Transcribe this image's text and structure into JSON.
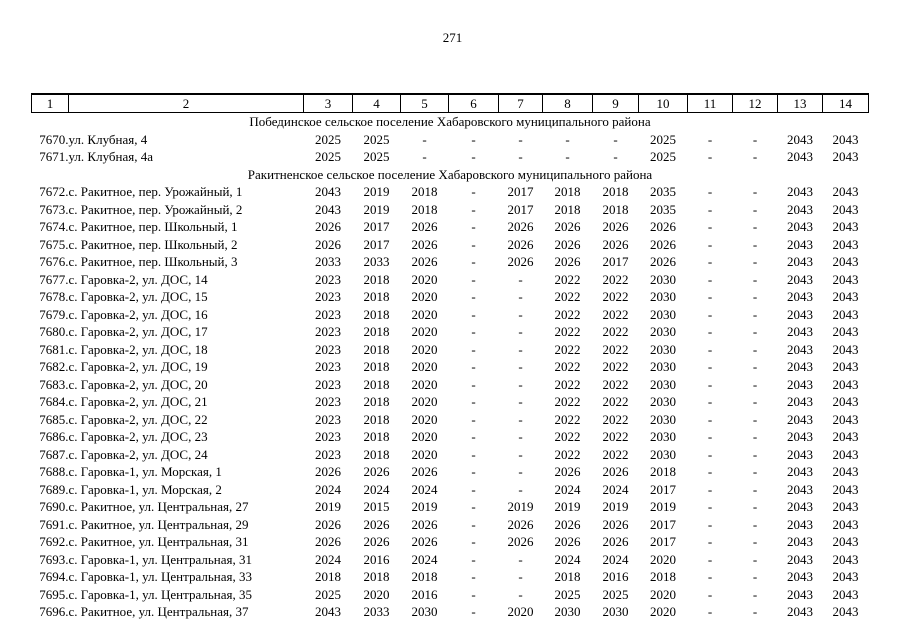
{
  "page": {
    "number": "271"
  },
  "table": {
    "column_numbers": [
      "1",
      "2",
      "3",
      "4",
      "5",
      "6",
      "7",
      "8",
      "9",
      "10",
      "11",
      "12",
      "13",
      "14"
    ],
    "rows": [
      {
        "type": "section",
        "text": "Побединское сельское поселение Хабаровского муниципального района"
      },
      {
        "type": "data",
        "num": "7670.",
        "address": "ул. Клубная, 4",
        "values": [
          "2025",
          "2025",
          "-",
          "-",
          "-",
          "-",
          "-",
          "2025",
          "-",
          "-",
          "2043",
          "2043"
        ]
      },
      {
        "type": "data",
        "num": "7671.",
        "address": "ул. Клубная, 4а",
        "values": [
          "2025",
          "2025",
          "-",
          "-",
          "-",
          "-",
          "-",
          "2025",
          "-",
          "-",
          "2043",
          "2043"
        ]
      },
      {
        "type": "section",
        "text": "Ракитненское сельское поселение Хабаровского муниципального района"
      },
      {
        "type": "data",
        "num": "7672.",
        "address": "с. Ракитное, пер. Урожайный, 1",
        "values": [
          "2043",
          "2019",
          "2018",
          "-",
          "2017",
          "2018",
          "2018",
          "2035",
          "-",
          "-",
          "2043",
          "2043"
        ]
      },
      {
        "type": "data",
        "num": "7673.",
        "address": "с. Ракитное, пер. Урожайный, 2",
        "values": [
          "2043",
          "2019",
          "2018",
          "-",
          "2017",
          "2018",
          "2018",
          "2035",
          "-",
          "-",
          "2043",
          "2043"
        ]
      },
      {
        "type": "data",
        "num": "7674.",
        "address": "с. Ракитное, пер. Школьный, 1",
        "values": [
          "2026",
          "2017",
          "2026",
          "-",
          "2026",
          "2026",
          "2026",
          "2026",
          "-",
          "-",
          "2043",
          "2043"
        ]
      },
      {
        "type": "data",
        "num": "7675.",
        "address": "с. Ракитное, пер. Школьный, 2",
        "values": [
          "2026",
          "2017",
          "2026",
          "-",
          "2026",
          "2026",
          "2026",
          "2026",
          "-",
          "-",
          "2043",
          "2043"
        ]
      },
      {
        "type": "data",
        "num": "7676.",
        "address": "с. Ракитное, пер. Школьный, 3",
        "values": [
          "2033",
          "2033",
          "2026",
          "-",
          "2026",
          "2026",
          "2017",
          "2026",
          "-",
          "-",
          "2043",
          "2043"
        ]
      },
      {
        "type": "data",
        "num": "7677.",
        "address": "с. Гаровка-2, ул. ДОС, 14",
        "values": [
          "2023",
          "2018",
          "2020",
          "-",
          "-",
          "2022",
          "2022",
          "2030",
          "-",
          "-",
          "2043",
          "2043"
        ]
      },
      {
        "type": "data",
        "num": "7678.",
        "address": "с. Гаровка-2, ул. ДОС, 15",
        "values": [
          "2023",
          "2018",
          "2020",
          "-",
          "-",
          "2022",
          "2022",
          "2030",
          "-",
          "-",
          "2043",
          "2043"
        ]
      },
      {
        "type": "data",
        "num": "7679.",
        "address": "с. Гаровка-2, ул. ДОС, 16",
        "values": [
          "2023",
          "2018",
          "2020",
          "-",
          "-",
          "2022",
          "2022",
          "2030",
          "-",
          "-",
          "2043",
          "2043"
        ]
      },
      {
        "type": "data",
        "num": "7680.",
        "address": "с. Гаровка-2, ул. ДОС, 17",
        "values": [
          "2023",
          "2018",
          "2020",
          "-",
          "-",
          "2022",
          "2022",
          "2030",
          "-",
          "-",
          "2043",
          "2043"
        ]
      },
      {
        "type": "data",
        "num": "7681.",
        "address": "с. Гаровка-2, ул. ДОС, 18",
        "values": [
          "2023",
          "2018",
          "2020",
          "-",
          "-",
          "2022",
          "2022",
          "2030",
          "-",
          "-",
          "2043",
          "2043"
        ]
      },
      {
        "type": "data",
        "num": "7682.",
        "address": "с. Гаровка-2, ул. ДОС, 19",
        "values": [
          "2023",
          "2018",
          "2020",
          "-",
          "-",
          "2022",
          "2022",
          "2030",
          "-",
          "-",
          "2043",
          "2043"
        ]
      },
      {
        "type": "data",
        "num": "7683.",
        "address": "с. Гаровка-2, ул. ДОС, 20",
        "values": [
          "2023",
          "2018",
          "2020",
          "-",
          "-",
          "2022",
          "2022",
          "2030",
          "-",
          "-",
          "2043",
          "2043"
        ]
      },
      {
        "type": "data",
        "num": "7684.",
        "address": "с. Гаровка-2, ул. ДОС, 21",
        "values": [
          "2023",
          "2018",
          "2020",
          "-",
          "-",
          "2022",
          "2022",
          "2030",
          "-",
          "-",
          "2043",
          "2043"
        ]
      },
      {
        "type": "data",
        "num": "7685.",
        "address": "с. Гаровка-2, ул. ДОС, 22",
        "values": [
          "2023",
          "2018",
          "2020",
          "-",
          "-",
          "2022",
          "2022",
          "2030",
          "-",
          "-",
          "2043",
          "2043"
        ]
      },
      {
        "type": "data",
        "num": "7686.",
        "address": "с. Гаровка-2, ул. ДОС, 23",
        "values": [
          "2023",
          "2018",
          "2020",
          "-",
          "-",
          "2022",
          "2022",
          "2030",
          "-",
          "-",
          "2043",
          "2043"
        ]
      },
      {
        "type": "data",
        "num": "7687.",
        "address": "с. Гаровка-2, ул. ДОС, 24",
        "values": [
          "2023",
          "2018",
          "2020",
          "-",
          "-",
          "2022",
          "2022",
          "2030",
          "-",
          "-",
          "2043",
          "2043"
        ]
      },
      {
        "type": "data",
        "num": "7688.",
        "address": "с. Гаровка-1, ул. Морская, 1",
        "values": [
          "2026",
          "2026",
          "2026",
          "-",
          "-",
          "2026",
          "2026",
          "2018",
          "-",
          "-",
          "2043",
          "2043"
        ]
      },
      {
        "type": "data",
        "num": "7689.",
        "address": "с. Гаровка-1, ул. Морская, 2",
        "values": [
          "2024",
          "2024",
          "2024",
          "-",
          "-",
          "2024",
          "2024",
          "2017",
          "-",
          "-",
          "2043",
          "2043"
        ]
      },
      {
        "type": "data",
        "num": "7690.",
        "address": "с. Ракитное, ул. Центральная, 27",
        "values": [
          "2019",
          "2015",
          "2019",
          "-",
          "2019",
          "2019",
          "2019",
          "2019",
          "-",
          "-",
          "2043",
          "2043"
        ]
      },
      {
        "type": "data",
        "num": "7691.",
        "address": "с. Ракитное, ул. Центральная, 29",
        "values": [
          "2026",
          "2026",
          "2026",
          "-",
          "2026",
          "2026",
          "2026",
          "2017",
          "-",
          "-",
          "2043",
          "2043"
        ]
      },
      {
        "type": "data",
        "num": "7692.",
        "address": "с. Ракитное, ул. Центральная, 31",
        "values": [
          "2026",
          "2026",
          "2026",
          "-",
          "2026",
          "2026",
          "2026",
          "2017",
          "-",
          "-",
          "2043",
          "2043"
        ]
      },
      {
        "type": "data",
        "num": "7693.",
        "address": "с. Гаровка-1, ул. Центральная, 31",
        "values": [
          "2024",
          "2016",
          "2024",
          "-",
          "-",
          "2024",
          "2024",
          "2020",
          "-",
          "-",
          "2043",
          "2043"
        ]
      },
      {
        "type": "data",
        "num": "7694.",
        "address": "с. Гаровка-1, ул. Центральная, 33",
        "values": [
          "2018",
          "2018",
          "2018",
          "-",
          "-",
          "2018",
          "2016",
          "2018",
          "-",
          "-",
          "2043",
          "2043"
        ]
      },
      {
        "type": "data",
        "num": "7695.",
        "address": "с. Гаровка-1, ул. Центральная, 35",
        "values": [
          "2025",
          "2020",
          "2016",
          "-",
          "-",
          "2025",
          "2025",
          "2020",
          "-",
          "-",
          "2043",
          "2043"
        ]
      },
      {
        "type": "data",
        "num": "7696.",
        "address": "с. Ракитное, ул. Центральная, 37",
        "values": [
          "2043",
          "2033",
          "2030",
          "-",
          "2020",
          "2030",
          "2030",
          "2020",
          "-",
          "-",
          "2043",
          "2043"
        ]
      }
    ]
  }
}
